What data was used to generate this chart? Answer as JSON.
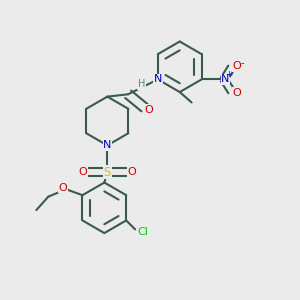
{
  "bg_color": "#ebebeb",
  "bond_color": "#3a5a4a",
  "bond_lw": 1.5,
  "atom_colors": {
    "N": "#0000cc",
    "O": "#cc0000",
    "S": "#cccc00",
    "Cl": "#00cc00",
    "H": "#5a8a7a",
    "C": "#3a5a4a"
  },
  "font_size": 7.5,
  "title": ""
}
